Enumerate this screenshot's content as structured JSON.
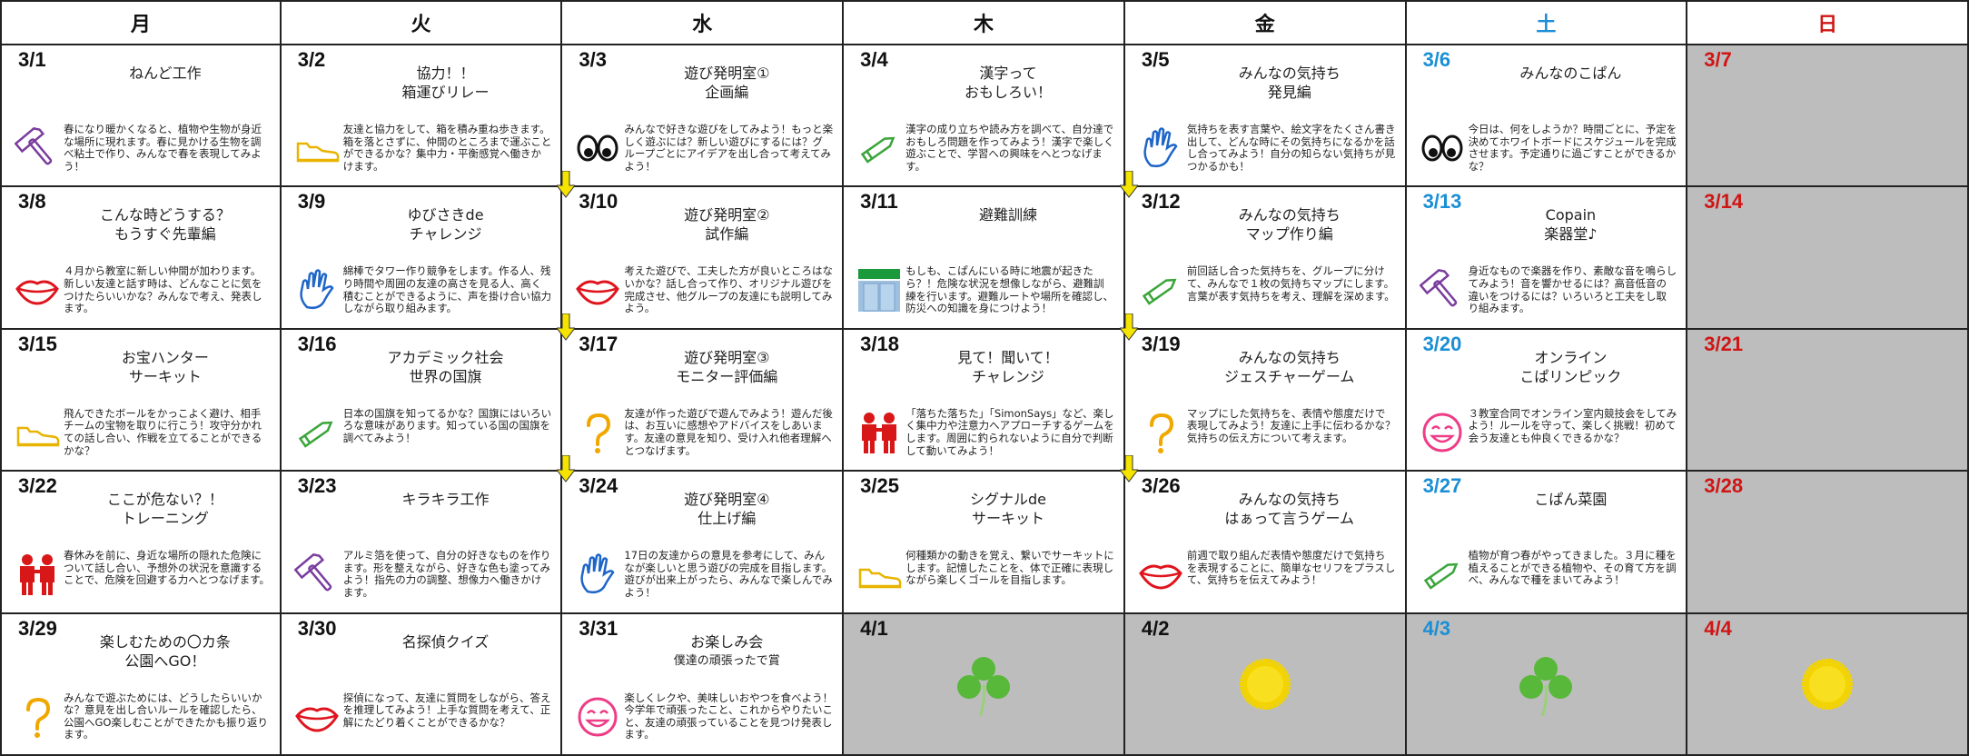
{
  "header": {
    "days": [
      "月",
      "火",
      "水",
      "木",
      "金",
      "土",
      "日"
    ]
  },
  "weeks": [
    [
      {
        "date": "3/1",
        "title": [
          "ねんど工作"
        ],
        "text": "春になり暖かくなると、植物や生物が身近な場所に現れます。春に見かける生物を調べ粘土で作り、みんなで春を表現してみよう！"
      },
      {
        "date": "3/2",
        "title": [
          "協力！！",
          "箱運びリレー"
        ],
        "text": "友達と協力をして、箱を積み重ね歩きます。箱を落とさずに、仲間のところまで運ぶことができるかな？集中力・平衡感覚へ働きかけます。"
      },
      {
        "date": "3/3",
        "title": [
          "遊び発明室①",
          "企画編"
        ],
        "text": "みんなで好きな遊びをしてみよう！もっと楽しく遊ぶには？新しい遊びにするには？グループごとにアイデアを出し合って考えてみよう！"
      },
      {
        "date": "3/4",
        "title": [
          "漢字って",
          "おもしろい！"
        ],
        "text": "漢字の成り立ちや読み方を調べて、自分達でおもしろ問題を作ってみよう！漢字で楽しく遊ぶことで、学習への興味をへとつなげます。"
      },
      {
        "date": "3/5",
        "title": [
          "みんなの気持ち",
          "発見編"
        ],
        "text": "気持ちを表す言葉や、絵文字をたくさん書き出して、どんな時にその気持ちになるかを話し合ってみよう！自分の知らない気持ちが見つかるかも！"
      },
      {
        "date": "3/6",
        "title": [
          "みんなのこぱん"
        ],
        "text": "今日は、何をしようか？時間ごとに、予定を決めてホワイトボードにスケジュールを完成させます。予定通りに過ごすことができるかな？"
      },
      {
        "date": "3/7"
      }
    ],
    [
      {
        "date": "3/8",
        "title": [
          "こんな時どうする？",
          "もうすぐ先輩編"
        ],
        "text": "４月から教室に新しい仲間が加わります。新しい友達と話す時は、どんなことに気をつけたらいいかな？みんなで考え、発表します。"
      },
      {
        "date": "3/9",
        "title": [
          "ゆびさきde",
          "チャレンジ"
        ],
        "text": "綿棒でタワー作り競争をします。作る人、残り時間や周囲の友達の高さを見る人、高く積むことができるように、声を掛け合い協力しながら取り組みます。"
      },
      {
        "date": "3/10",
        "title": [
          "遊び発明室②",
          "試作編"
        ],
        "text": "考えた遊びで、工夫した方が良いところはないかな？話し合って作り、オリジナル遊びを完成させ、他グループの友達にも説明してみよう。"
      },
      {
        "date": "3/11",
        "title": [
          "避難訓練"
        ],
        "text": "もしも、こぱんにいる時に地震が起きたら？！危険な状況を想像しながら、避難訓練を行います。避難ルートや場所を確認し、防災への知識を身につけよう！"
      },
      {
        "date": "3/12",
        "title": [
          "みんなの気持ち",
          "マップ作り編"
        ],
        "text": "前回話し合った気持ちを、グループに分けて、みんなで１枚の気持ちマップにします。言葉が表す気持ちを考え、理解を深めます。"
      },
      {
        "date": "3/13",
        "title": [
          "Copain",
          "楽器堂♪"
        ],
        "text": "身近なもので楽器を作り、素敵な音を鳴らしてみよう！音を響かせるには？高音低音の違いをつけるには？いろいろと工夫をし取り組みます。"
      },
      {
        "date": "3/14"
      }
    ],
    [
      {
        "date": "3/15",
        "title": [
          "お宝ハンター",
          "サーキット"
        ],
        "text": "飛んできたボールをかっこよく避け、相手チームの宝物を取りに行こう！攻守分かれての話し合い、作戦を立てることができるかな？"
      },
      {
        "date": "3/16",
        "title": [
          "アカデミック社会",
          "世界の国旗"
        ],
        "text": "日本の国旗を知ってるかな？国旗にはいろいろな意味があります。知っている国の国旗を調べてみよう！"
      },
      {
        "date": "3/17",
        "title": [
          "遊び発明室③",
          "モニター評価編"
        ],
        "text": "友達が作った遊びで遊んでみよう！遊んだ後は、お互いに感想やアドバイスをしあいます。友達の意見を知り、受け入れ他者理解へとつなげます。"
      },
      {
        "date": "3/18",
        "title": [
          "見て！聞いて！",
          "チャレンジ"
        ],
        "text": "「落ちた落ちた」「SimonSays」など、楽しく集中力や注意力へアプローチするゲームをします。周囲に釣られないように自分で判断して動いてみよう！"
      },
      {
        "date": "3/19",
        "title": [
          "みんなの気持ち",
          "ジェスチャーゲーム"
        ],
        "text": "マップにした気持ちを、表情や態度だけで表現してみよう！友達に上手に伝わるかな？気持ちの伝え方について考えます。"
      },
      {
        "date": "3/20",
        "title": [
          "オンライン",
          "こぱリンピック"
        ],
        "text": "３教室合同でオンライン室内競技会をしてみよう！ルールを守って、楽しく挑戦！初めて会う友達とも仲良くできるかな？"
      },
      {
        "date": "3/21"
      }
    ],
    [
      {
        "date": "3/22",
        "title": [
          "ここが危ない？！",
          "トレーニング"
        ],
        "text": "春休みを前に、身近な場所の隠れた危険について話し合い、予想外の状況を意識することで、危険を回避する力へとつなげます。"
      },
      {
        "date": "3/23",
        "title": [
          "キラキラ工作"
        ],
        "text": "アルミ箔を使って、自分の好きなものを作ります。形を整えながら、好きな色も塗ってみよう！指先の力の調整、想像力へ働きかけます。"
      },
      {
        "date": "3/24",
        "title": [
          "遊び発明室④",
          "仕上げ編"
        ],
        "text": "17日の友達からの意見を参考にして、みんなが楽しいと思う遊びの完成を目指します。遊びが出来上がったら、みんなで楽しんでみよう！"
      },
      {
        "date": "3/25",
        "title": [
          "シグナルde",
          "サーキット"
        ],
        "text": "何種類かの動きを覚え、繋いでサーキットにします。記憶したことを、体で正確に表現しながら楽しくゴールを目指します。"
      },
      {
        "date": "3/26",
        "title": [
          "みんなの気持ち",
          "はぁって言うゲーム"
        ],
        "text": "前週で取り組んだ表情や態度だけで気持ちを表現することに、簡単なセリフをプラスして、気持ちを伝えてみよう！"
      },
      {
        "date": "3/27",
        "title": [
          "こぱん菜園"
        ],
        "text": "植物が育つ春がやってきました。３月に種を植えることができる植物や、その育て方を調べ、みんなで種をまいてみよう！"
      },
      {
        "date": "3/28"
      }
    ],
    [
      {
        "date": "3/29",
        "title": [
          "楽しむための〇カ条",
          "公園へGO！"
        ],
        "text": "みんなで遊ぶためには、どうしたらいいかな？意見を出し合いルールを確認したら、公園へGO楽しむことができたかも振り返ります。"
      },
      {
        "date": "3/30",
        "title": [
          "名探偵クイズ"
        ],
        "text": "探偵になって、友達に質問をしながら、答えを推理してみよう！上手な質問を考えて、正解にたどり着くことができるかな？"
      },
      {
        "date": "3/31",
        "title": [
          "お楽しみ会"
        ],
        "subtitle": "僕達の頑張ったで賞",
        "text": "楽しくレクや、美味しいおやつを食べよう！今学年で頑張ったこと、これからやりたいこと、友達の頑張っていることを見つけ発表します。"
      },
      {
        "date": "4/1"
      },
      {
        "date": "4/2"
      },
      {
        "date": "4/3"
      },
      {
        "date": "4/4"
      }
    ]
  ]
}
